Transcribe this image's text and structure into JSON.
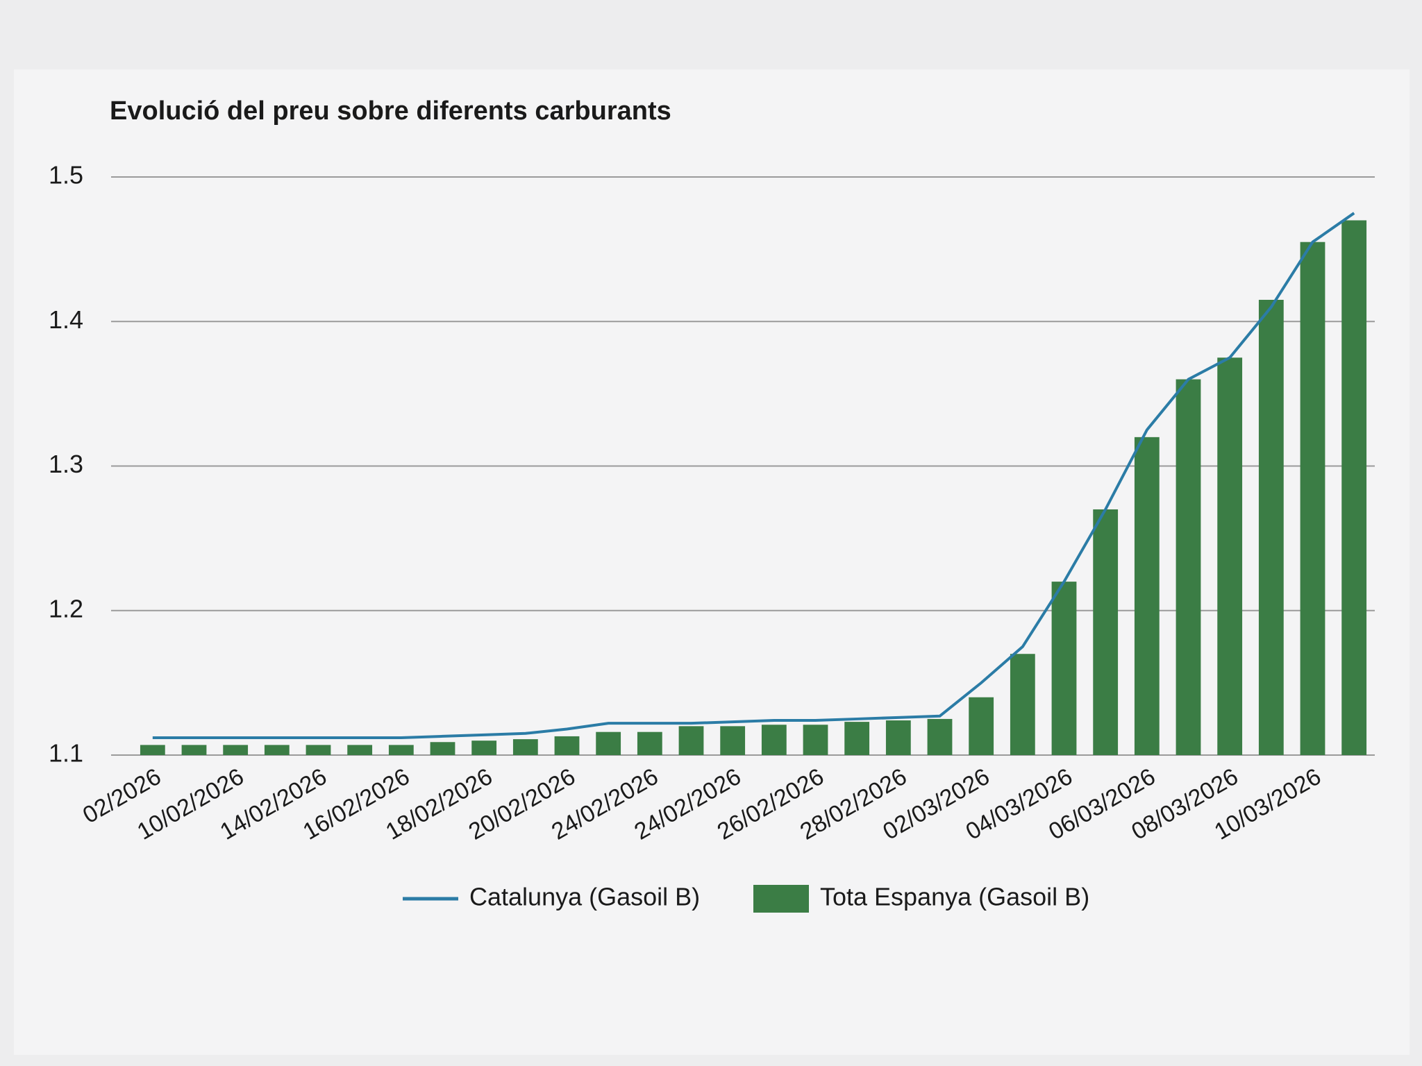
{
  "chart_data": {
    "type": "bar-line",
    "title": "Evolució del preu sobre diferents carburants",
    "categories": [
      "02/2026",
      null,
      "10/02/2026",
      null,
      "14/02/2026",
      null,
      "16/02/2026",
      null,
      "18/02/2026",
      null,
      "20/02/2026",
      null,
      "24/02/2026",
      null,
      "24/02/2026",
      null,
      "26/02/2026",
      null,
      "28/02/2026",
      null,
      "02/03/2026",
      null,
      "04/03/2026",
      null,
      "06/03/2026",
      null,
      "08/03/2026",
      null,
      "10/03/2026",
      null
    ],
    "series": [
      {
        "name": "Catalunya (Gasoil B)",
        "type": "line",
        "color": "#2b7ca6",
        "values": [
          1.112,
          1.112,
          1.112,
          1.112,
          1.112,
          1.112,
          1.112,
          1.113,
          1.114,
          1.115,
          1.118,
          1.122,
          1.122,
          1.122,
          1.123,
          1.124,
          1.124,
          1.125,
          1.126,
          1.127,
          1.15,
          1.175,
          1.22,
          1.27,
          1.325,
          1.36,
          1.375,
          1.41,
          1.455,
          1.475
        ]
      },
      {
        "name": "Tota Espanya (Gasoil B)",
        "type": "bar",
        "color": "#3b7d45",
        "values": [
          1.107,
          1.107,
          1.107,
          1.107,
          1.107,
          1.107,
          1.107,
          1.109,
          1.11,
          1.111,
          1.113,
          1.116,
          1.116,
          1.12,
          1.12,
          1.121,
          1.121,
          1.123,
          1.124,
          1.125,
          1.14,
          1.17,
          1.22,
          1.27,
          1.32,
          1.36,
          1.375,
          1.415,
          1.455,
          1.47
        ]
      }
    ],
    "ylim": [
      1.1,
      1.5
    ],
    "yticks": [
      1.1,
      1.2,
      1.3,
      1.4,
      1.5
    ],
    "grid": true,
    "legend": "bottom"
  }
}
